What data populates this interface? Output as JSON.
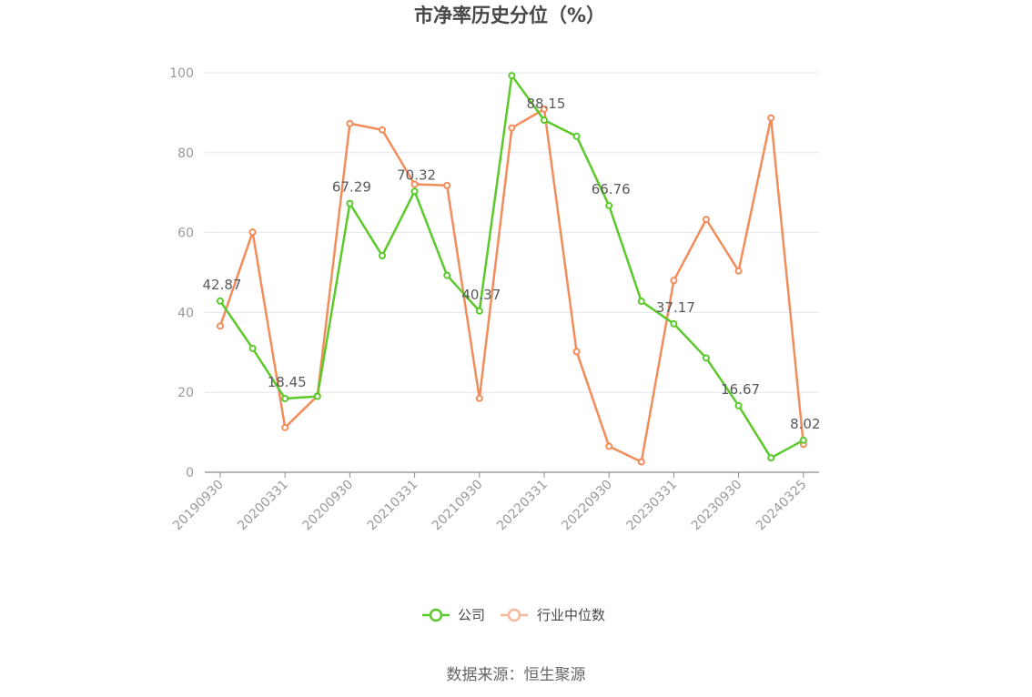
{
  "chart_data": {
    "type": "line",
    "title": "市净率历史分位（%）",
    "source": "数据来源：恒生聚源",
    "ylim": [
      0,
      100
    ],
    "yticks": [
      "0",
      "20",
      "40",
      "60",
      "80",
      "100"
    ],
    "x": [
      "20190930",
      "20191231",
      "20200331",
      "20200630",
      "20200930",
      "20201231",
      "20210331",
      "20210630",
      "20210930",
      "20211231",
      "20220331",
      "20220630",
      "20220930",
      "20221231",
      "20230331",
      "20230630",
      "20230930",
      "20231231",
      "20240325"
    ],
    "xtick_labels": [
      "20190930",
      "20200331",
      "20200930",
      "20210331",
      "20210930",
      "20220331",
      "20220930",
      "20230331",
      "20230930",
      "20240325"
    ],
    "grid": true,
    "legend_position": "bottom",
    "series": [
      {
        "name": "公司",
        "color": "#5bc92a",
        "values": [
          42.87,
          31.0,
          18.45,
          19.0,
          67.29,
          54.2,
          70.32,
          49.3,
          40.37,
          99.3,
          88.15,
          84.1,
          66.76,
          42.8,
          37.17,
          28.6,
          16.67,
          3.6,
          8.02
        ],
        "labels": [
          "42.87",
          null,
          "18.45",
          null,
          "67.29",
          null,
          "70.32",
          null,
          "40.37",
          null,
          "88.15",
          null,
          "66.76",
          null,
          "37.17",
          null,
          "16.67",
          null,
          "8.02"
        ]
      },
      {
        "name": "行业中位数",
        "color": "#f28c5a",
        "values": [
          36.6,
          60.1,
          11.2,
          19.1,
          87.3,
          85.7,
          72.1,
          71.8,
          18.5,
          86.2,
          90.9,
          30.2,
          6.5,
          2.6,
          48.0,
          63.3,
          50.4,
          88.7,
          7.0
        ]
      }
    ]
  }
}
